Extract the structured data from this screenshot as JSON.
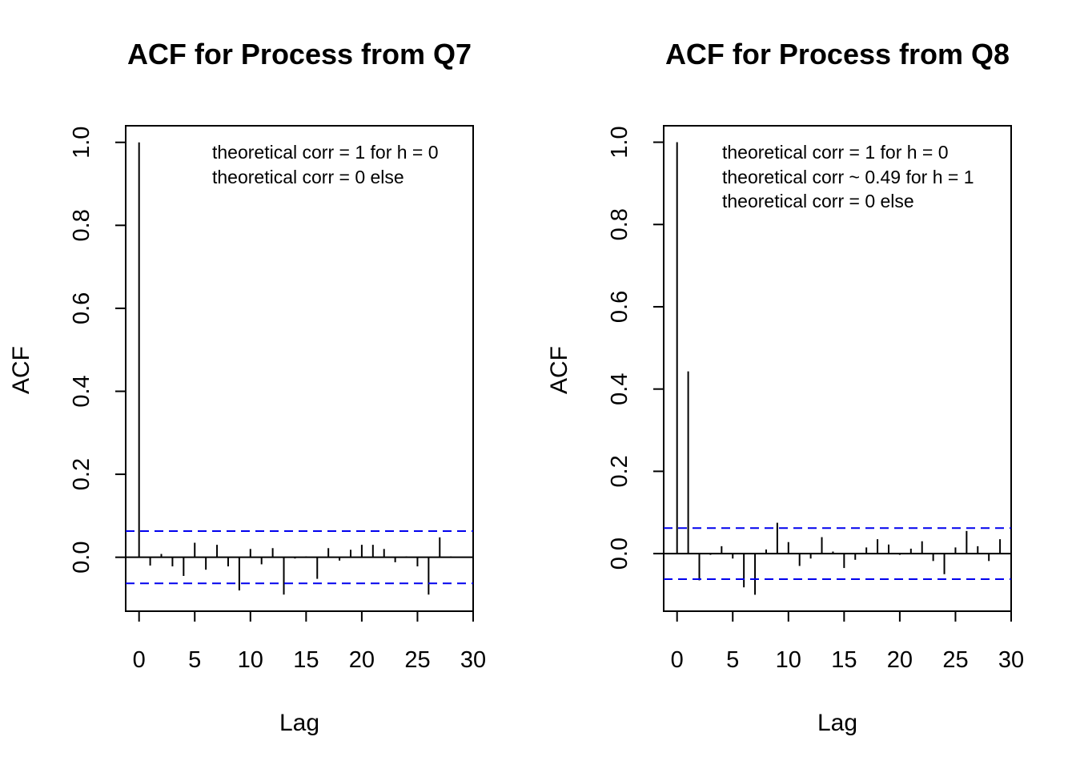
{
  "chart_data": [
    {
      "type": "bar",
      "title": "ACF for Process from Q7",
      "xlabel": "Lag",
      "ylabel": "ACF",
      "xlim": [
        -1.2,
        30
      ],
      "ylim": [
        -0.13,
        1.04
      ],
      "xticks": [
        0,
        5,
        10,
        15,
        20,
        25,
        30
      ],
      "yticks": [
        0.0,
        0.2,
        0.4,
        0.6,
        0.8,
        1.0
      ],
      "xtick_labels": [
        "0",
        "5",
        "10",
        "15",
        "20",
        "25",
        "30"
      ],
      "ytick_labels": [
        "0.0",
        "0.2",
        "0.4",
        "0.6",
        "0.8",
        "1.0"
      ],
      "ci": 0.063,
      "ci_color": "#0000ee",
      "annotations": [
        "theoretical corr = 1 for h = 0",
        "theoretical corr = 0 else"
      ],
      "x": [
        0,
        1,
        2,
        3,
        4,
        5,
        6,
        7,
        8,
        9,
        10,
        11,
        12,
        13,
        14,
        15,
        16,
        17,
        18,
        19,
        20,
        21,
        22,
        23,
        24,
        25,
        26,
        27,
        28
      ],
      "values": [
        1.0,
        -0.02,
        0.008,
        -0.022,
        -0.045,
        0.035,
        -0.03,
        0.03,
        -0.022,
        -0.08,
        0.02,
        -0.017,
        0.022,
        -0.09,
        -0.003,
        0.002,
        -0.052,
        0.022,
        -0.008,
        0.018,
        0.03,
        0.03,
        0.02,
        -0.012,
        0.002,
        -0.022,
        -0.09,
        0.048,
        0.002
      ]
    },
    {
      "type": "bar",
      "title": "ACF for Process from Q8",
      "xlabel": "Lag",
      "ylabel": "ACF",
      "xlim": [
        -1.2,
        30
      ],
      "ylim": [
        -0.14,
        1.04
      ],
      "xticks": [
        0,
        5,
        10,
        15,
        20,
        25,
        30
      ],
      "yticks": [
        0.0,
        0.2,
        0.4,
        0.6,
        0.8,
        1.0
      ],
      "xtick_labels": [
        "0",
        "5",
        "10",
        "15",
        "20",
        "25",
        "30"
      ],
      "ytick_labels": [
        "0.0",
        "0.2",
        "0.4",
        "0.6",
        "0.8",
        "1.0"
      ],
      "ci": 0.062,
      "ci_color": "#0000ee",
      "annotations": [
        "theoretical corr = 1 for h = 0",
        "theoretical corr ~ 0.49 for h = 1",
        "theoretical corr = 0 else"
      ],
      "x": [
        0,
        1,
        2,
        3,
        4,
        5,
        6,
        7,
        8,
        9,
        10,
        11,
        12,
        13,
        14,
        15,
        16,
        17,
        18,
        19,
        20,
        21,
        22,
        23,
        24,
        25,
        26,
        27,
        28,
        29
      ],
      "values": [
        1.0,
        0.443,
        -0.065,
        -0.003,
        0.018,
        -0.012,
        -0.082,
        -0.1,
        0.01,
        0.075,
        0.028,
        -0.03,
        -0.012,
        0.04,
        0.005,
        -0.035,
        -0.015,
        0.015,
        0.035,
        0.022,
        -0.003,
        0.012,
        0.03,
        -0.018,
        -0.05,
        0.015,
        0.055,
        0.018,
        -0.018,
        0.035
      ]
    }
  ]
}
